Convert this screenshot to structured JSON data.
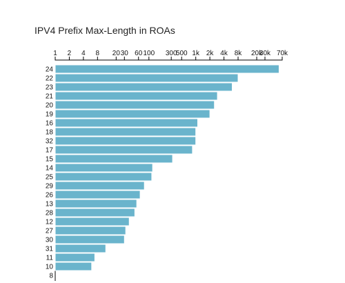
{
  "chart_data": {
    "type": "bar",
    "orientation": "horizontal",
    "title": "IPV4 Prefix Max-Length in ROAs",
    "x_scale": "log",
    "x_axis_position": "top",
    "xlim": [
      1,
      70000
    ],
    "x_ticks": [
      {
        "value": 1,
        "label": "1"
      },
      {
        "value": 2,
        "label": "2"
      },
      {
        "value": 4,
        "label": "4"
      },
      {
        "value": 8,
        "label": "8"
      },
      {
        "value": 20,
        "label": "20"
      },
      {
        "value": 30,
        "label": "30"
      },
      {
        "value": 60,
        "label": "60"
      },
      {
        "value": 100,
        "label": "100"
      },
      {
        "value": 300,
        "label": "300"
      },
      {
        "value": 500,
        "label": "500"
      },
      {
        "value": 1000,
        "label": "1k"
      },
      {
        "value": 2000,
        "label": "2k"
      },
      {
        "value": 4000,
        "label": "4k"
      },
      {
        "value": 8000,
        "label": "8k"
      },
      {
        "value": 20000,
        "label": "20k"
      },
      {
        "value": 30000,
        "label": "30k"
      },
      {
        "value": 70000,
        "label": "70k"
      }
    ],
    "categories": [
      "24",
      "22",
      "23",
      "21",
      "20",
      "19",
      "16",
      "18",
      "32",
      "17",
      "15",
      "14",
      "25",
      "29",
      "26",
      "13",
      "28",
      "12",
      "27",
      "30",
      "31",
      "11",
      "10",
      "8"
    ],
    "values": [
      60000,
      8000,
      6000,
      2900,
      2500,
      2000,
      1100,
      1000,
      1000,
      850,
      320,
      120,
      115,
      80,
      65,
      55,
      50,
      38,
      32,
      30,
      12,
      7,
      6,
      1
    ],
    "bar_color": "#6ab4cc"
  }
}
